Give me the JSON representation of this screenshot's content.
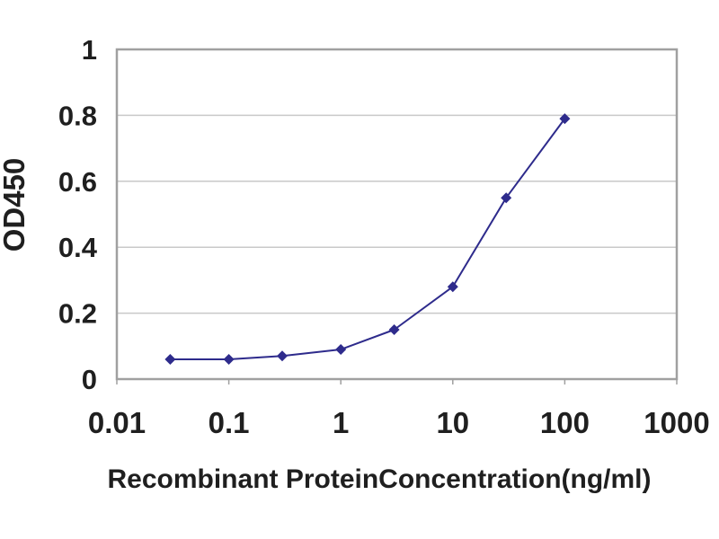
{
  "chart_data": {
    "type": "line",
    "title": "",
    "xlabel": "Recombinant ProteinConcentration(ng/ml)",
    "ylabel": "OD450",
    "x_scale": "log",
    "y_scale": "linear",
    "xlim": [
      0.01,
      1000
    ],
    "ylim": [
      0,
      1
    ],
    "x_ticks": [
      "0.01",
      "0.1",
      "1",
      "10",
      "100",
      "1000"
    ],
    "y_ticks": [
      "0",
      "0.2",
      "0.4",
      "0.6",
      "0.8",
      "1"
    ],
    "grid": "horizontal-major",
    "legend": "none",
    "series": [
      {
        "x": [
          0.03,
          0.1,
          0.3,
          1,
          3,
          10,
          30,
          100
        ],
        "y": [
          0.06,
          0.06,
          0.07,
          0.09,
          0.15,
          0.28,
          0.55,
          0.79
        ],
        "marker": "diamond",
        "color": "#2e2b8c"
      }
    ],
    "colors": {
      "line": "#2e2b8c",
      "marker": "#2e2b8c",
      "axis_frame": "#a0a0a0",
      "gridline": "#c9c9c9",
      "text": "#1f1f1f",
      "background": "#ffffff"
    }
  }
}
